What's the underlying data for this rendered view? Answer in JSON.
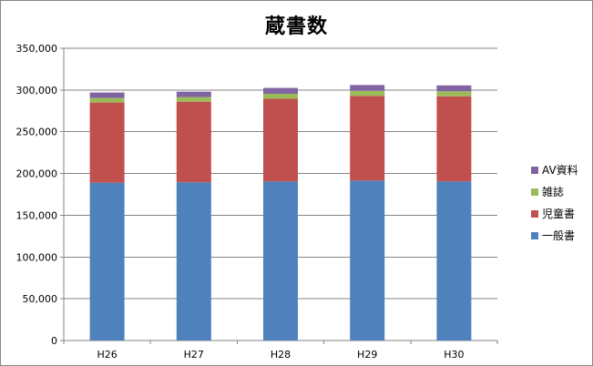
{
  "chart_data": {
    "type": "bar",
    "stacked": true,
    "title": "蔵書数",
    "categories": [
      "H26",
      "H27",
      "H28",
      "H29",
      "H30"
    ],
    "series": [
      {
        "name": "一般書",
        "color": "#4F81BD",
        "values": [
          189000,
          189500,
          190500,
          191500,
          190500
        ]
      },
      {
        "name": "児童書",
        "color": "#C0504D",
        "values": [
          96000,
          96500,
          99000,
          101500,
          102000
        ]
      },
      {
        "name": "雑誌",
        "color": "#9BBB59",
        "values": [
          5500,
          5500,
          6000,
          6000,
          6000
        ]
      },
      {
        "name": "AV資料",
        "color": "#8064A2",
        "values": [
          6500,
          6500,
          7000,
          7000,
          7000
        ]
      }
    ],
    "ylim": [
      0,
      350000
    ],
    "yticks": [
      0,
      50000,
      100000,
      150000,
      200000,
      250000,
      300000,
      350000
    ],
    "ytick_labels": [
      "0",
      "50,000",
      "100,000",
      "150,000",
      "200,000",
      "250,000",
      "300,000",
      "350,000"
    ],
    "grid": true,
    "legend_position": "right"
  }
}
